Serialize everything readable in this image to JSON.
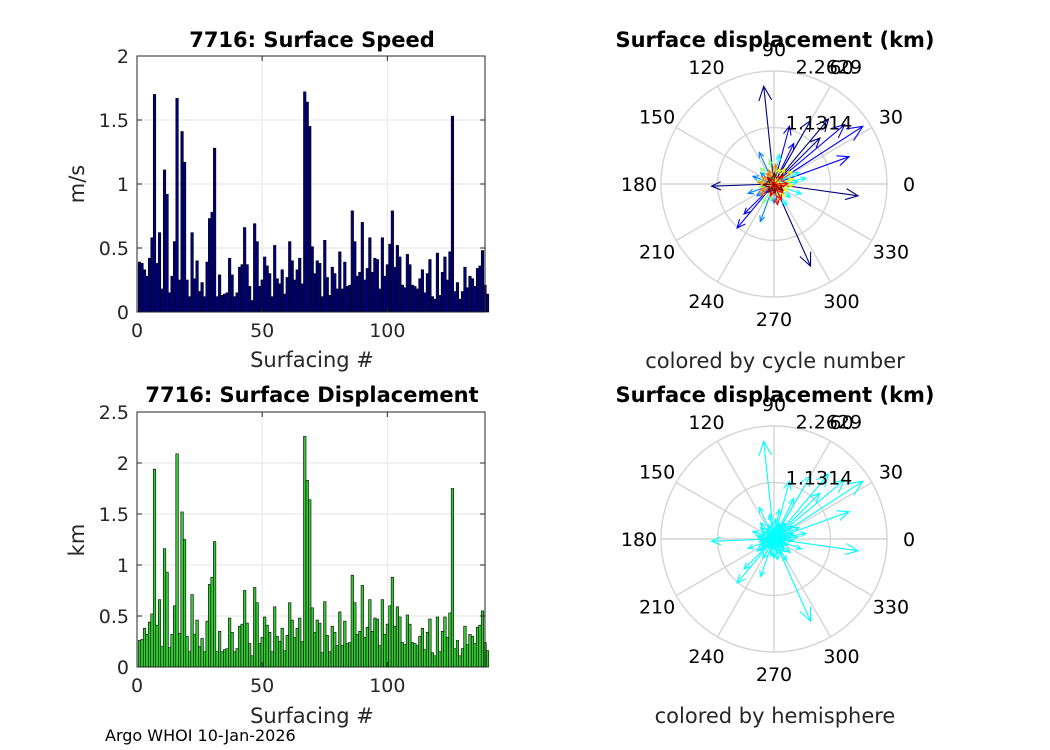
{
  "footer": "Argo WHOI 10-Jan-2026",
  "chart_data": [
    {
      "type": "bar",
      "title": "7716: Surface Speed",
      "xlabel": "Surfacing #",
      "ylabel": "m/s",
      "xlim": [
        0,
        139
      ],
      "ylim": [
        0,
        2
      ],
      "xticks": [
        "0",
        "50",
        "100"
      ],
      "xtick_values": [
        0,
        50,
        100
      ],
      "yticks": [
        "0",
        "0.5",
        "1",
        "1.5",
        "2"
      ],
      "ytick_values": [
        0,
        0.5,
        1,
        1.5,
        2
      ],
      "bar_color": "#00007f",
      "values": [
        0.39,
        0.38,
        0.33,
        0.28,
        0.42,
        0.58,
        1.7,
        0.38,
        0.62,
        0.18,
        1.11,
        0.92,
        0.15,
        0.28,
        0.55,
        1.67,
        0.25,
        1.41,
        1.17,
        0.25,
        0.12,
        0.62,
        0.26,
        0.4,
        0.16,
        0.23,
        0.12,
        0.39,
        0.73,
        0.78,
        1.28,
        0.12,
        0.29,
        0.13,
        0.14,
        0.15,
        0.42,
        0.29,
        0.12,
        0.15,
        0.35,
        0.37,
        0.66,
        0.37,
        0.2,
        0.09,
        0.69,
        0.55,
        0.2,
        0.25,
        0.43,
        0.36,
        0.3,
        0.12,
        0.52,
        0.26,
        0.22,
        0.33,
        0.14,
        0.27,
        0.55,
        0.4,
        0.25,
        0.33,
        0.42,
        0.22,
        1.72,
        1.64,
        1.45,
        0.51,
        0.3,
        0.4,
        0.38,
        0.12,
        0.56,
        0.27,
        0.13,
        0.35,
        0.3,
        0.18,
        0.47,
        0.18,
        0.39,
        0.2,
        0.21,
        0.79,
        0.55,
        0.28,
        0.31,
        0.7,
        0.25,
        0.34,
        0.58,
        0.31,
        0.42,
        0.41,
        0.18,
        0.58,
        0.28,
        0.37,
        0.53,
        0.79,
        0.35,
        0.52,
        0.43,
        0.21,
        0.19,
        0.45,
        0.37,
        0.21,
        0.2,
        0.18,
        0.26,
        0.33,
        0.15,
        0.3,
        0.41,
        0.12,
        0.1,
        0.46,
        0.13,
        0.31,
        0.43,
        0.25,
        0.47,
        1.53,
        0.16,
        0.23,
        0.1,
        0.16,
        0.35,
        0.19,
        0.28,
        0.26,
        0.2,
        0.34,
        0.36,
        0.48,
        0.21,
        0.14
      ]
    },
    {
      "type": "bar",
      "title": "7716: Surface Displacement",
      "xlabel": "Surfacing #",
      "ylabel": "km",
      "xlim": [
        0,
        139
      ],
      "ylim": [
        0,
        2.5
      ],
      "xticks": [
        "0",
        "50",
        "100"
      ],
      "xtick_values": [
        0,
        50,
        100
      ],
      "yticks": [
        "0",
        "0.5",
        "1",
        "1.5",
        "2",
        "2.5"
      ],
      "ytick_values": [
        0,
        0.5,
        1,
        1.5,
        2,
        2.5
      ],
      "bar_color": "#33cc33",
      "values": [
        0.26,
        0.27,
        0.38,
        0.32,
        0.44,
        0.52,
        1.94,
        0.41,
        0.66,
        0.2,
        1.16,
        0.93,
        0.19,
        0.32,
        0.6,
        2.09,
        0.33,
        1.52,
        1.25,
        0.3,
        0.15,
        0.71,
        0.32,
        0.46,
        0.2,
        0.28,
        0.15,
        0.45,
        0.81,
        0.88,
        1.23,
        0.15,
        0.35,
        0.15,
        0.17,
        0.18,
        0.48,
        0.34,
        0.15,
        0.18,
        0.4,
        0.42,
        0.75,
        0.43,
        0.23,
        0.11,
        0.78,
        0.63,
        0.23,
        0.29,
        0.49,
        0.41,
        0.34,
        0.15,
        0.59,
        0.3,
        0.25,
        0.38,
        0.16,
        0.31,
        0.63,
        0.46,
        0.29,
        0.38,
        0.48,
        0.25,
        2.26,
        1.83,
        1.64,
        0.58,
        0.34,
        0.46,
        0.43,
        0.14,
        0.64,
        0.31,
        0.15,
        0.4,
        0.34,
        0.21,
        0.54,
        0.21,
        0.45,
        0.23,
        0.24,
        0.9,
        0.63,
        0.32,
        0.35,
        0.8,
        0.29,
        0.39,
        0.66,
        0.35,
        0.48,
        0.47,
        0.21,
        0.66,
        0.32,
        0.42,
        0.6,
        0.88,
        0.4,
        0.59,
        0.49,
        0.24,
        0.22,
        0.51,
        0.42,
        0.24,
        0.23,
        0.21,
        0.3,
        0.38,
        0.17,
        0.34,
        0.47,
        0.14,
        0.11,
        0.49,
        0.15,
        0.35,
        0.49,
        0.29,
        0.53,
        1.75,
        0.18,
        0.26,
        0.11,
        0.18,
        0.4,
        0.22,
        0.32,
        0.3,
        0.23,
        0.39,
        0.41,
        0.55,
        0.24,
        0.16
      ]
    },
    {
      "type": "polar",
      "title": "Surface displacement (km)",
      "subtitle": "colored by cycle number",
      "rmax": 2.2629,
      "rticks": [
        "1.1314",
        "2.2629"
      ],
      "rtick_values": [
        1.1314,
        2.2629
      ],
      "theta_ticks": [
        "0",
        "30",
        "60",
        "90",
        "120",
        "150",
        "180",
        "210",
        "240",
        "270",
        "300",
        "330"
      ],
      "theta_tick_values": [
        0,
        30,
        60,
        90,
        120,
        150,
        180,
        210,
        240,
        270,
        300,
        330
      ],
      "color_mode": "cycle",
      "arrows": [
        {
          "angle": 96,
          "r": 1.97
        },
        {
          "angle": 60,
          "r": 1.47
        },
        {
          "angle": 45,
          "r": 1.3
        },
        {
          "angle": 182,
          "r": 1.25
        },
        {
          "angle": 294,
          "r": 1.8
        },
        {
          "angle": 352,
          "r": 1.7
        },
        {
          "angle": 50,
          "r": 1.7
        },
        {
          "angle": 40,
          "r": 1.85
        },
        {
          "angle": 33,
          "r": 2.12
        },
        {
          "angle": 20,
          "r": 1.6
        },
        {
          "angle": 230,
          "r": 1.15
        },
        {
          "angle": 225,
          "r": 0.85
        },
        {
          "angle": 75,
          "r": 1.2
        },
        {
          "angle": 64,
          "r": 0.9
        },
        {
          "angle": 250,
          "r": 0.8
        },
        {
          "angle": 115,
          "r": 0.7
        },
        {
          "angle": 140,
          "r": 0.35
        },
        {
          "angle": 160,
          "r": 0.45
        },
        {
          "angle": 200,
          "r": 0.55
        },
        {
          "angle": 215,
          "r": 0.42
        },
        {
          "angle": 270,
          "r": 0.38
        },
        {
          "angle": 300,
          "r": 0.5
        },
        {
          "angle": 320,
          "r": 0.42
        },
        {
          "angle": 340,
          "r": 0.58
        },
        {
          "angle": 10,
          "r": 0.65
        },
        {
          "angle": 5,
          "r": 0.48
        },
        {
          "angle": 25,
          "r": 0.55
        },
        {
          "angle": 80,
          "r": 0.6
        },
        {
          "angle": 100,
          "r": 0.5
        },
        {
          "angle": 130,
          "r": 0.42
        },
        {
          "angle": 170,
          "r": 0.35
        },
        {
          "angle": 190,
          "r": 0.3
        },
        {
          "angle": 240,
          "r": 0.45
        },
        {
          "angle": 260,
          "r": 0.35
        },
        {
          "angle": 285,
          "r": 0.28
        },
        {
          "angle": 310,
          "r": 0.33
        },
        {
          "angle": 335,
          "r": 0.3
        },
        {
          "angle": 355,
          "r": 0.38
        },
        {
          "angle": 15,
          "r": 0.4
        },
        {
          "angle": 35,
          "r": 0.45
        },
        {
          "angle": 55,
          "r": 0.38
        },
        {
          "angle": 70,
          "r": 0.33
        },
        {
          "angle": 85,
          "r": 0.4
        },
        {
          "angle": 110,
          "r": 0.3
        },
        {
          "angle": 125,
          "r": 0.25
        },
        {
          "angle": 150,
          "r": 0.28
        },
        {
          "angle": 175,
          "r": 0.32
        },
        {
          "angle": 205,
          "r": 0.3
        },
        {
          "angle": 220,
          "r": 0.35
        },
        {
          "angle": 255,
          "r": 0.25
        },
        {
          "angle": 280,
          "r": 0.42
        },
        {
          "angle": 295,
          "r": 0.35
        },
        {
          "angle": 315,
          "r": 0.25
        },
        {
          "angle": 345,
          "r": 0.2
        },
        {
          "angle": 2,
          "r": 0.28
        },
        {
          "angle": 42,
          "r": 0.25
        },
        {
          "angle": 88,
          "r": 0.22
        },
        {
          "angle": 135,
          "r": 0.18
        },
        {
          "angle": 185,
          "r": 0.22
        },
        {
          "angle": 235,
          "r": 0.2
        },
        {
          "angle": 275,
          "r": 0.18
        },
        {
          "angle": 325,
          "r": 0.22
        }
      ]
    },
    {
      "type": "polar",
      "title": "Surface displacement (km)",
      "subtitle": "colored by hemisphere",
      "rmax": 2.2629,
      "rticks": [
        "1.1314",
        "2.2629"
      ],
      "rtick_values": [
        1.1314,
        2.2629
      ],
      "theta_ticks": [
        "0",
        "30",
        "60",
        "90",
        "120",
        "150",
        "180",
        "210",
        "240",
        "270",
        "300",
        "330"
      ],
      "theta_tick_values": [
        0,
        30,
        60,
        90,
        120,
        150,
        180,
        210,
        240,
        270,
        300,
        330
      ],
      "color_mode": "single",
      "arrow_color": "#00ffff"
    }
  ]
}
